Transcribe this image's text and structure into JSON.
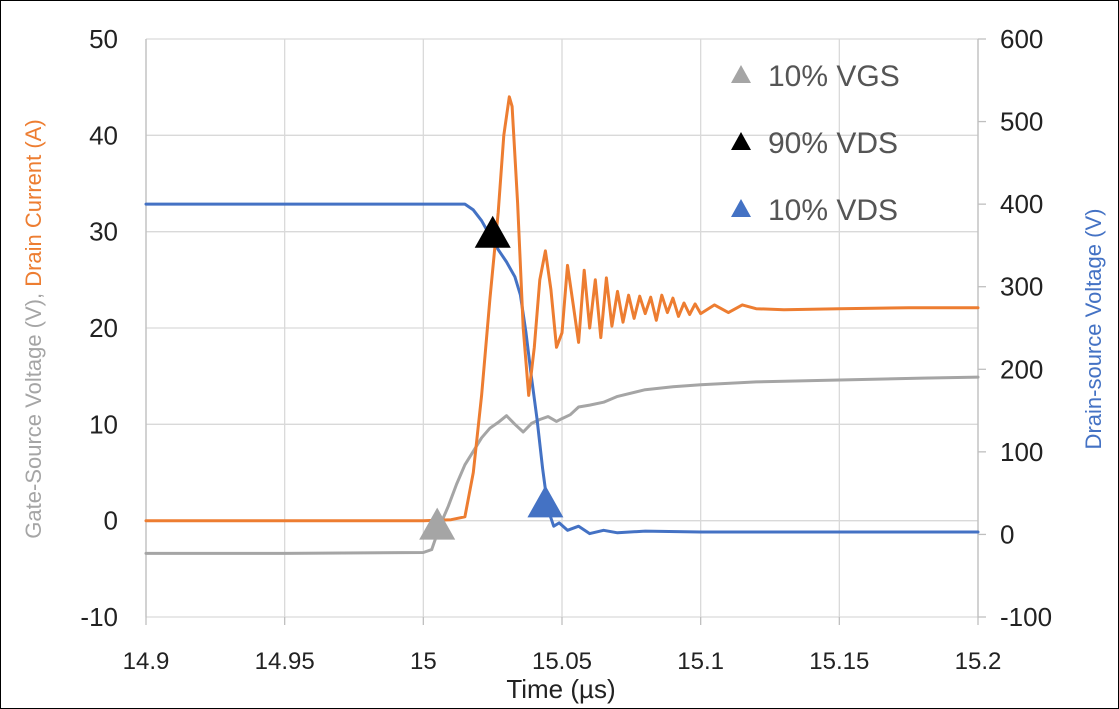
{
  "chart_data": {
    "type": "line",
    "xlabel": "Time (µs)",
    "ylabel_left": {
      "parts": [
        {
          "text": "Gate-Source Voltage (V), ",
          "color": "#a5a5a5"
        },
        {
          "text": "Drain Current (A)",
          "color": "#ed7d31"
        }
      ]
    },
    "ylabel_right": {
      "text": "Drain-source Voltage (V)",
      "color": "#4472c4"
    },
    "xlim": [
      14.9,
      15.2
    ],
    "ylim_left": [
      -10,
      50
    ],
    "ylim_right": [
      -100,
      600
    ],
    "x_ticks": [
      14.9,
      14.95,
      15,
      15.05,
      15.1,
      15.15,
      15.2
    ],
    "x_tick_labels": [
      "14.9",
      "14.95",
      "15",
      "15.05",
      "15.1",
      "15.15",
      "15.2"
    ],
    "y_left_ticks": [
      -10,
      0,
      10,
      20,
      30,
      40,
      50
    ],
    "y_left_tick_labels": [
      "-10",
      "0",
      "10",
      "20",
      "30",
      "40",
      "50"
    ],
    "y_right_ticks": [
      -100,
      0,
      100,
      200,
      300,
      400,
      500,
      600
    ],
    "y_right_tick_labels": [
      "-100",
      "0",
      "100",
      "200",
      "300",
      "400",
      "500",
      "600"
    ],
    "grid": true,
    "legend_position": "top-right",
    "series": [
      {
        "name": "Gate-Source Voltage",
        "axis": "left",
        "color": "#a5a5a5",
        "x": [
          14.9,
          14.95,
          15.0,
          15.003,
          15.006,
          15.009,
          15.012,
          15.015,
          15.018,
          15.021,
          15.024,
          15.027,
          15.03,
          15.033,
          15.036,
          15.039,
          15.042,
          15.045,
          15.048,
          15.05,
          15.053,
          15.056,
          15.06,
          15.065,
          15.07,
          15.08,
          15.09,
          15.1,
          15.12,
          15.15,
          15.18,
          15.2
        ],
        "y": [
          -3.4,
          -3.4,
          -3.3,
          -3.0,
          -0.5,
          1.5,
          3.8,
          5.8,
          7.2,
          8.6,
          9.6,
          10.2,
          10.9,
          10.0,
          9.2,
          10.1,
          10.5,
          10.8,
          10.3,
          10.6,
          11.0,
          11.8,
          12.0,
          12.3,
          12.9,
          13.6,
          13.9,
          14.1,
          14.4,
          14.6,
          14.8,
          14.9
        ]
      },
      {
        "name": "Drain Current",
        "axis": "left",
        "color": "#ed7d31",
        "x": [
          14.9,
          14.95,
          15.0,
          15.01,
          15.015,
          15.018,
          15.021,
          15.024,
          15.027,
          15.029,
          15.031,
          15.032,
          15.034,
          15.036,
          15.038,
          15.04,
          15.042,
          15.044,
          15.046,
          15.048,
          15.05,
          15.052,
          15.054,
          15.056,
          15.058,
          15.06,
          15.062,
          15.064,
          15.066,
          15.068,
          15.07,
          15.072,
          15.074,
          15.076,
          15.078,
          15.08,
          15.082,
          15.084,
          15.086,
          15.088,
          15.09,
          15.092,
          15.094,
          15.096,
          15.098,
          15.1,
          15.105,
          15.11,
          15.115,
          15.12,
          15.13,
          15.15,
          15.175,
          15.2
        ],
        "y": [
          0.0,
          0.0,
          0.0,
          0.1,
          0.4,
          5.0,
          13.0,
          23.0,
          32.0,
          40.0,
          44.0,
          43.0,
          33.0,
          20.0,
          13.0,
          18.0,
          25.0,
          28.0,
          24.0,
          18.0,
          19.5,
          26.5,
          22.5,
          18.5,
          26.0,
          20.0,
          25.0,
          19.0,
          25.2,
          20.2,
          23.8,
          20.6,
          23.4,
          21.0,
          23.3,
          21.5,
          23.2,
          20.8,
          23.4,
          21.6,
          23.1,
          21.2,
          22.6,
          21.4,
          22.5,
          21.5,
          22.4,
          21.6,
          22.4,
          22.0,
          21.9,
          22.0,
          22.1,
          22.1
        ]
      },
      {
        "name": "Drain-source Voltage",
        "axis": "right",
        "color": "#4472c4",
        "x": [
          14.9,
          14.95,
          15.0,
          15.015,
          15.018,
          15.021,
          15.024,
          15.027,
          15.03,
          15.033,
          15.035,
          15.037,
          15.039,
          15.041,
          15.043,
          15.045,
          15.047,
          15.049,
          15.052,
          15.056,
          15.06,
          15.065,
          15.07,
          15.08,
          15.1,
          15.15,
          15.2
        ],
        "y": [
          400,
          400,
          400,
          400,
          393,
          380,
          362,
          345,
          330,
          312,
          290,
          245,
          190,
          140,
          80,
          30,
          10,
          14,
          5,
          10,
          1,
          5,
          2,
          4,
          3,
          3,
          3
        ]
      }
    ],
    "markers": [
      {
        "label": "10% VGS",
        "axis": "left",
        "x": 15.005,
        "y": -0.3,
        "color": "#a5a5a5"
      },
      {
        "label": "90% VDS",
        "axis": "left",
        "x": 15.025,
        "y": 30.0,
        "color": "#000000"
      },
      {
        "label": "10% VDS",
        "axis": "left",
        "x": 15.044,
        "y": 2.0,
        "color": "#4472c4"
      }
    ]
  }
}
